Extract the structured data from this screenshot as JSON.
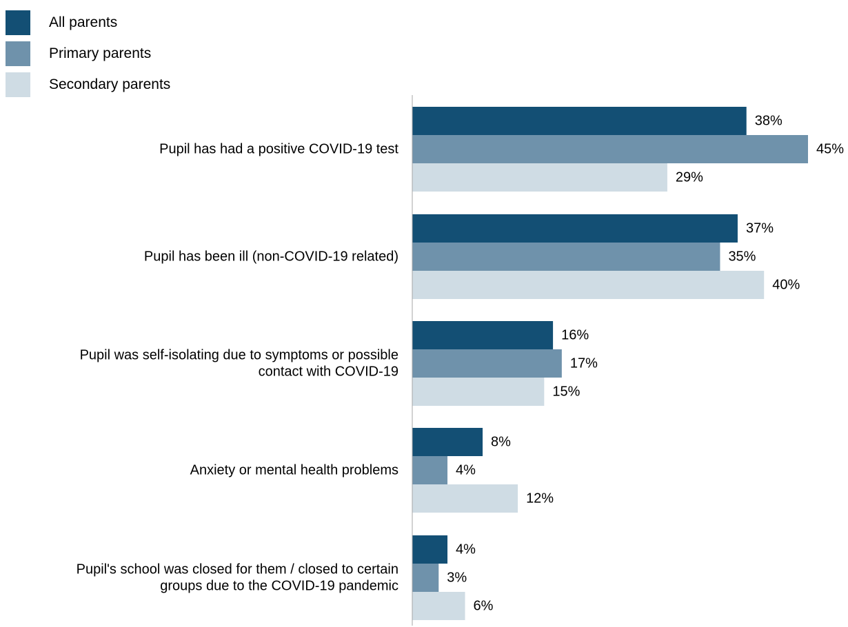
{
  "chart_data": {
    "type": "bar",
    "orientation": "horizontal",
    "title": "",
    "xlabel": "",
    "ylabel": "",
    "xlim": [
      0,
      45
    ],
    "grid": false,
    "legend_position": "top-left",
    "value_suffix": "%",
    "categories": [
      [
        "Pupil has had a positive COVID-19 test"
      ],
      [
        "Pupil has been ill (non-COVID-19 related)"
      ],
      [
        "Pupil was self-isolating due to symptoms or possible",
        "contact with COVID-19"
      ],
      [
        "Anxiety or mental health problems"
      ],
      [
        "Pupil's school was closed for them / closed to certain",
        "groups due to the  COVID-19 pandemic"
      ]
    ],
    "series": [
      {
        "name": "All parents",
        "color": "#134f74",
        "values": [
          38,
          37,
          16,
          8,
          4
        ]
      },
      {
        "name": "Primary parents",
        "color": "#6f92ab",
        "values": [
          45,
          35,
          17,
          4,
          3
        ]
      },
      {
        "name": "Secondary parents",
        "color": "#cfdce4",
        "values": [
          29,
          40,
          15,
          12,
          6
        ]
      }
    ]
  }
}
